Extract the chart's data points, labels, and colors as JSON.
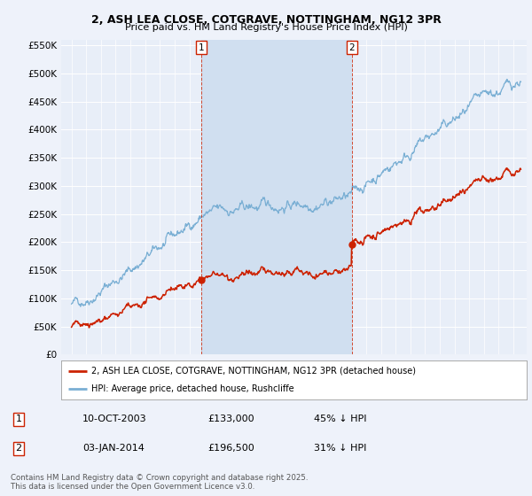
{
  "title_line1": "2, ASH LEA CLOSE, COTGRAVE, NOTTINGHAM, NG12 3PR",
  "title_line2": "Price paid vs. HM Land Registry's House Price Index (HPI)",
  "background_color": "#eef2fa",
  "plot_bg_color": "#e8eef8",
  "shaded_region_color": "#d0dff0",
  "red_line_color": "#cc2200",
  "blue_line_color": "#7aafd4",
  "sale1_date_num": 2003.78,
  "sale1_price": 133000,
  "sale2_date_num": 2014.01,
  "sale2_price": 196500,
  "ylim_min": 0,
  "ylim_max": 560000,
  "ytick_values": [
    0,
    50000,
    100000,
    150000,
    200000,
    250000,
    300000,
    350000,
    400000,
    450000,
    500000,
    550000
  ],
  "ytick_labels": [
    "£0",
    "£50K",
    "£100K",
    "£150K",
    "£200K",
    "£250K",
    "£300K",
    "£350K",
    "£400K",
    "£450K",
    "£500K",
    "£550K"
  ],
  "legend_line1": "2, ASH LEA CLOSE, COTGRAVE, NOTTINGHAM, NG12 3PR (detached house)",
  "legend_line2": "HPI: Average price, detached house, Rushcliffe",
  "footnote_line1": "Contains HM Land Registry data © Crown copyright and database right 2025.",
  "footnote_line2": "This data is licensed under the Open Government Licence v3.0.",
  "table_row1": [
    "1",
    "10-OCT-2003",
    "£133,000",
    "45% ↓ HPI"
  ],
  "table_row2": [
    "2",
    "03-JAN-2014",
    "£196,500",
    "31% ↓ HPI"
  ]
}
